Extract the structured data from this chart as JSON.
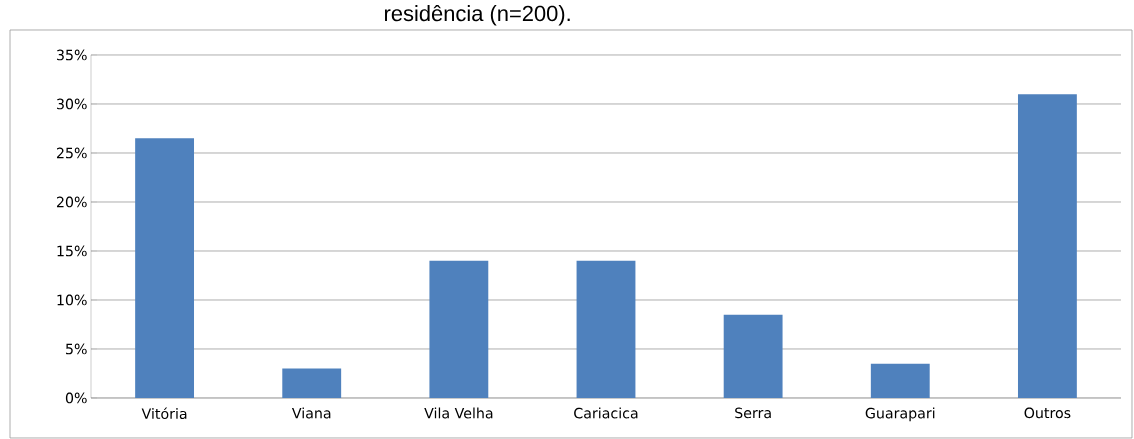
{
  "chart_data": {
    "type": "bar",
    "title": "residência (n=200).",
    "categories": [
      "Vitória",
      "Viana",
      "Vila Velha",
      "Cariacica",
      "Serra",
      "Guarapari",
      "Outros"
    ],
    "values": [
      26.5,
      3,
      14,
      14,
      8.5,
      3.5,
      31
    ],
    "color": "#4f81bd",
    "ylim": [
      0,
      35
    ],
    "yticks": [
      {
        "value": 0,
        "label": "0%"
      },
      {
        "value": 5,
        "label": "5%"
      },
      {
        "value": 10,
        "label": "10%"
      },
      {
        "value": 15,
        "label": "15%"
      },
      {
        "value": 20,
        "label": "20%"
      },
      {
        "value": 25,
        "label": "25%"
      },
      {
        "value": 30,
        "label": "30%"
      },
      {
        "value": 35,
        "label": "35%"
      }
    ],
    "grid": "y"
  }
}
